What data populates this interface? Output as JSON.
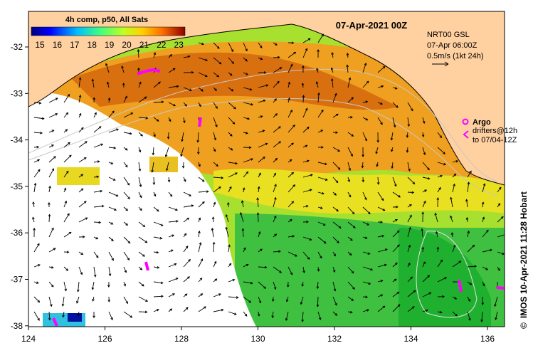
{
  "title": "07-Apr-2021 00Z",
  "colorbar": {
    "title": "4h comp, p50, All Sats",
    "ticks": [
      "15",
      "16",
      "17",
      "18",
      "19",
      "20",
      "21",
      "22",
      "23"
    ],
    "colors": [
      "#00007f",
      "#0000ff",
      "#007fff",
      "#00ffff",
      "#7fff7f",
      "#ffff00",
      "#ff7f00",
      "#ff0000",
      "#7f0000"
    ]
  },
  "current_legend": {
    "line1": "NRT00 GSL",
    "line2": "07-Apr 06:00Z",
    "line3": "0.5m/s (1kt 24h)"
  },
  "argo_legend": {
    "argo_label": "Argo",
    "drifters_line1": "drifters@12h",
    "drifters_line2": "to 07/04-12Z"
  },
  "credit": "IMOS 10-Apr-2021 11:28 Hobart",
  "copyright": "©",
  "axes": {
    "lon_ticks": [
      "124",
      "126",
      "128",
      "130",
      "132",
      "134",
      "136"
    ],
    "lat_ticks": [
      "-32",
      "-33",
      "-34",
      "-35",
      "-36",
      "-37",
      "-38"
    ]
  },
  "colors": {
    "land": "#ffd0a0",
    "no_data": "#ffffff",
    "argo": "#ff00ff",
    "arrows": "#000000",
    "contours": "#c8c8c8"
  }
}
